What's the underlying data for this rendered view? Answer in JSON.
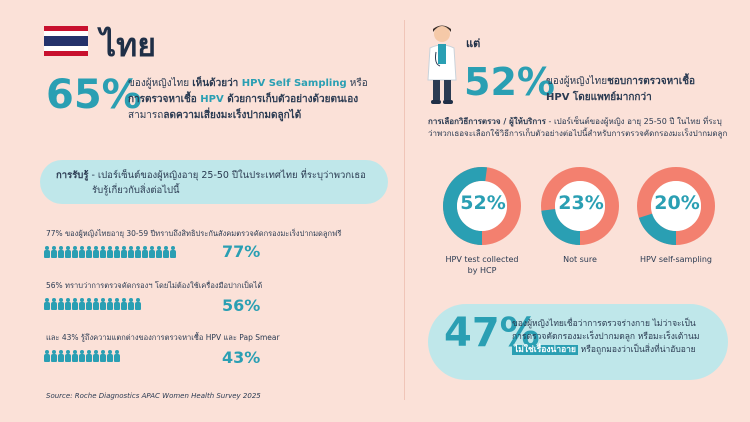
{
  "header": {
    "country": "ไทย"
  },
  "left": {
    "stat65": {
      "value": "65%",
      "line1_a": "ของผู้หญิงไทย ",
      "line1_b": "เห็นด้วยว่า ",
      "line1_c": "HPV Self Sampling",
      "line1_d": " หรือ",
      "line2_a": "การตรวจหาเชื้อ ",
      "line2_b": "HPV",
      "line2_c": " ด้วยการเก็บตัวอย่างด้วยตนเอง",
      "line3_a": "สามารถ",
      "line3_b": "ลดความเสี่ยงมะเร็งปากมดลูกได้"
    },
    "awareness": {
      "title": "การรับรู้",
      "text": " - เปอร์เซ็นต์ของผู้หญิงอายุ 25-50 ปีในประเทศไทย ที่ระบุว่าพวกเธอ",
      "text2": "รับรู้เกี่ยวกับสิ่งต่อไปนี้"
    },
    "stats": [
      {
        "text": "77% ของผู้หญิงไทยอายุ 30-59 ปีทราบถึงสิทธิประกันสังคมตรวจคัดกรองมะเร็งปากมดลูกฟรี",
        "pct": "77%",
        "fraction": 0.77
      },
      {
        "text": "56% ทราบว่าการตรวจคัดกรองฯ โดยไม่ต้องใช้เครื่องมือปากเป็ดได้",
        "pct": "56%",
        "fraction": 0.56
      },
      {
        "text": "และ 43% รู้ถึงความแตกต่างของการตรวจหาเชื้อ HPV และ Pap Smear",
        "pct": "43%",
        "fraction": 0.43
      }
    ],
    "source": "Source: Roche Diagnostics APAC Women Health Survey 2025"
  },
  "right": {
    "but": "แต่",
    "stat52": {
      "value": "52%",
      "line1_a": "ของผู้หญิงไทย",
      "line1_b": "ชอบการตรวจหาเชื้อ",
      "line2": "HPV โดยแพทย์มากกว่า"
    },
    "choice": {
      "title": "การเลือกวิธีการตรวจ / ผู้ให้บริการ",
      "text": " - เปอร์เซ็นต์ของผู้หญิง อายุ 25-50 ปี ในไทย ที่ระบุว่าพวกเธอจะเลือกใช้วิธีการเก็บตัวอย่างต่อไปนี้สำหรับการตรวจคัดกรองมะเร็งปากมดลูก"
    },
    "donuts": [
      {
        "pct": "52%",
        "value": 52,
        "label1": "HPV test collected",
        "label2": "by HCP"
      },
      {
        "pct": "23%",
        "value": 23,
        "label1": "Not sure",
        "label2": ""
      },
      {
        "pct": "20%",
        "value": 20,
        "label1": "HPV self-sampling",
        "label2": ""
      }
    ],
    "stat47": {
      "value": "47%",
      "line1": "ของผู้หญิงไทยเชื่อว่าการตรวจร่างกาย ไม่ว่าจะเป็น",
      "line2": "การตรวจคัดกรองมะเร็งปากมดลูก หรือมะเร็งเต้านม",
      "highlight": "ไม่ใช่เรื่องน่าอาย",
      "line3": " หรือถูกมองว่าเป็นสิ่งที่น่าอับอาย"
    }
  },
  "colors": {
    "teal": "#2a9fb3",
    "salmon": "#f3806f",
    "background": "#fbe1d8",
    "panel": "#bfe7ea"
  }
}
